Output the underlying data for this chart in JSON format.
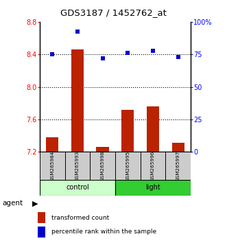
{
  "title": "GDS3187 / 1452762_at",
  "samples": [
    "GSM265984",
    "GSM265993",
    "GSM265998",
    "GSM265995",
    "GSM265996",
    "GSM265997"
  ],
  "bar_values": [
    7.38,
    8.46,
    7.26,
    7.72,
    7.76,
    7.31
  ],
  "scatter_values": [
    8.4,
    8.68,
    8.35,
    8.42,
    8.44,
    8.37
  ],
  "ylim_left": [
    7.2,
    8.8
  ],
  "ylim_right": [
    0,
    100
  ],
  "yticks_left": [
    7.2,
    7.6,
    8.0,
    8.4,
    8.8
  ],
  "yticks_right": [
    0,
    25,
    50,
    75,
    100
  ],
  "ytick_labels_right": [
    "0",
    "25",
    "50",
    "75",
    "100%"
  ],
  "bar_color": "#bb2200",
  "scatter_color": "#0000cc",
  "bar_bottom": 7.2,
  "control_color": "#ccffcc",
  "light_color": "#33cc33",
  "sample_box_color": "#cccccc",
  "grid_yticks": [
    7.6,
    8.0,
    8.4
  ],
  "legend_items": [
    {
      "color": "#bb2200",
      "label": "transformed count"
    },
    {
      "color": "#0000cc",
      "label": "percentile rank within the sample"
    }
  ]
}
